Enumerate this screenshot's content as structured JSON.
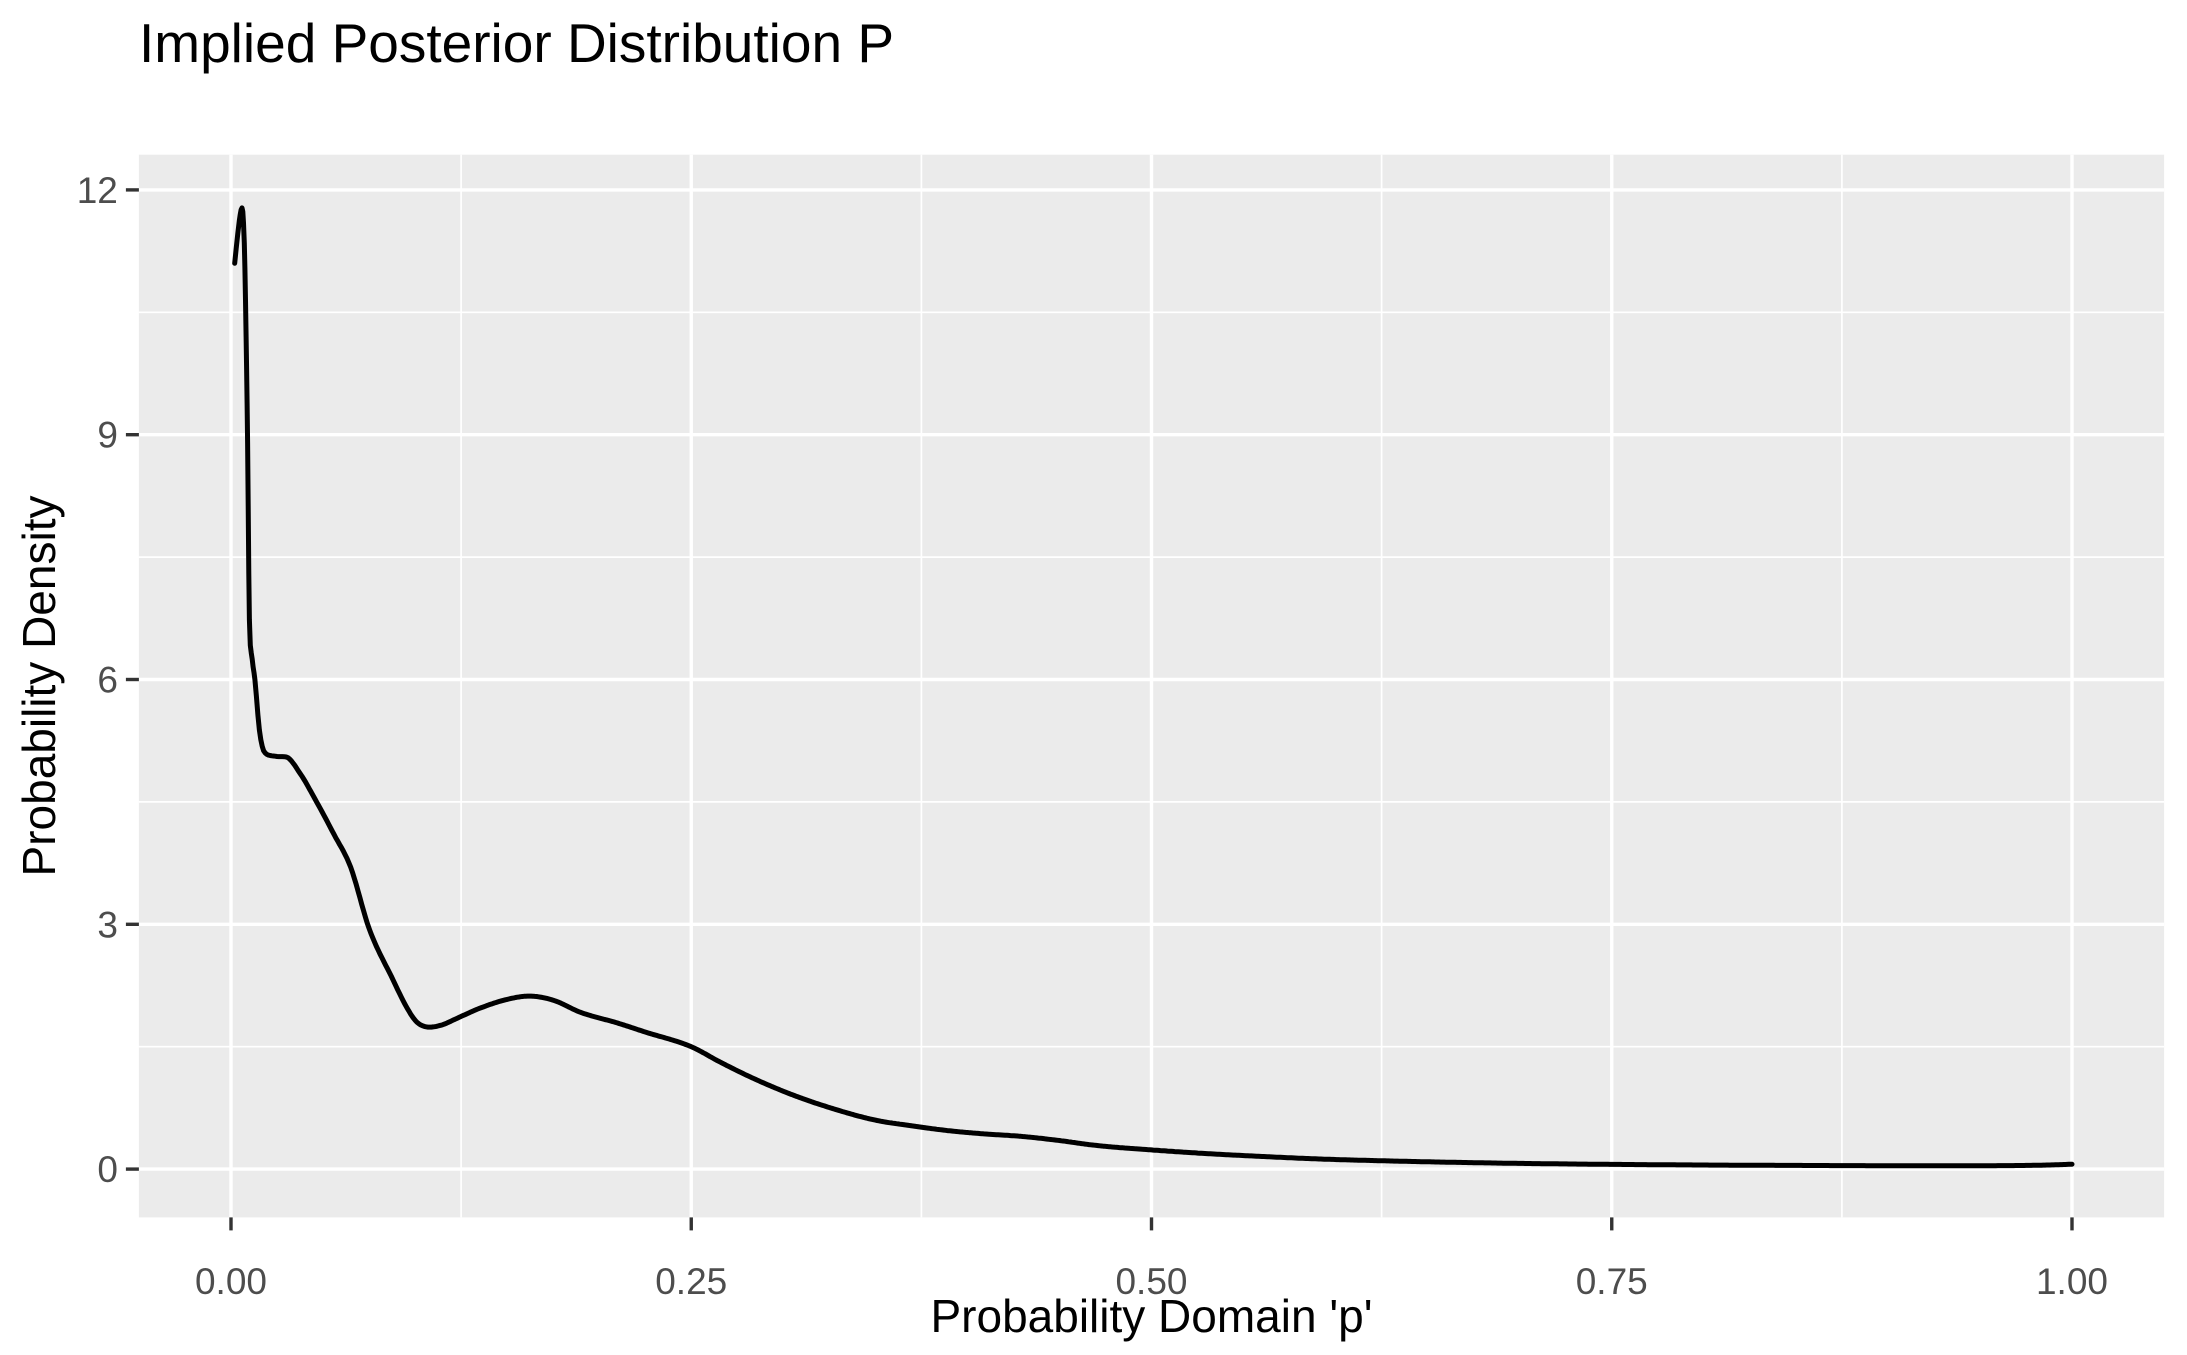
{
  "title": "Implied Posterior Distribution P",
  "x_axis": {
    "label": "Probability Domain 'p'",
    "tick_labels": [
      "0.00",
      "0.25",
      "0.50",
      "0.75",
      "1.00"
    ],
    "tick_values": [
      0,
      0.25,
      0.5,
      0.75,
      1.0
    ],
    "minor_tick_values": [
      0.125,
      0.375,
      0.625,
      0.875
    ],
    "range_expanded": [
      -0.05,
      1.05
    ]
  },
  "y_axis": {
    "label": "Probability Density",
    "tick_labels": [
      "0",
      "3",
      "6",
      "9",
      "12"
    ],
    "tick_values": [
      0,
      3,
      6,
      9,
      12
    ],
    "minor_tick_values": [
      1.5,
      4.5,
      7.5,
      10.5
    ],
    "range_expanded": [
      -0.59,
      12.43
    ]
  },
  "style": {
    "background": "#FFFFFF",
    "panel_background": "#EBEBEB",
    "gridline_color": "#FFFFFF",
    "curve_color": "#000000",
    "tick_mark_color": "#333333",
    "tick_label_color": "#4D4D4D",
    "title_color": "#000000"
  },
  "chart_data": {
    "type": "line",
    "title": "Implied Posterior Distribution P",
    "xlabel": "Probability Domain 'p'",
    "ylabel": "Probability Density",
    "xlim": [
      -0.05,
      1.05
    ],
    "ylim": [
      -0.59,
      12.43
    ],
    "grid": "gray panel, white major+minor gridlines (ggplot style)",
    "legend_position": "none",
    "series": [
      {
        "name": "posterior-density-curve",
        "color": "#000000",
        "points": [
          [
            0.002,
            11.1
          ],
          [
            0.0045,
            11.62
          ],
          [
            0.006,
            11.78
          ],
          [
            0.0072,
            11.35
          ],
          [
            0.0082,
            10.2
          ],
          [
            0.009,
            8.9
          ],
          [
            0.01,
            6.73
          ],
          [
            0.0115,
            6.25
          ],
          [
            0.013,
            6.0
          ],
          [
            0.0154,
            5.38
          ],
          [
            0.0185,
            5.1
          ],
          [
            0.024,
            5.06
          ],
          [
            0.03,
            5.05
          ],
          [
            0.0375,
            4.85
          ],
          [
            0.0465,
            4.5
          ],
          [
            0.056,
            4.1
          ],
          [
            0.065,
            3.7
          ],
          [
            0.075,
            2.95
          ],
          [
            0.088,
            2.32
          ],
          [
            0.095,
            2.0
          ],
          [
            0.101,
            1.8
          ],
          [
            0.108,
            1.74
          ],
          [
            0.115,
            1.77
          ],
          [
            0.122,
            1.84
          ],
          [
            0.135,
            1.97
          ],
          [
            0.15,
            2.08
          ],
          [
            0.162,
            2.12
          ],
          [
            0.175,
            2.07
          ],
          [
            0.19,
            1.92
          ],
          [
            0.21,
            1.79
          ],
          [
            0.225,
            1.68
          ],
          [
            0.25,
            1.5
          ],
          [
            0.265,
            1.32
          ],
          [
            0.282,
            1.13
          ],
          [
            0.305,
            0.91
          ],
          [
            0.33,
            0.72
          ],
          [
            0.35,
            0.6
          ],
          [
            0.37,
            0.53
          ],
          [
            0.39,
            0.47
          ],
          [
            0.41,
            0.43
          ],
          [
            0.43,
            0.4
          ],
          [
            0.45,
            0.35
          ],
          [
            0.47,
            0.29
          ],
          [
            0.5,
            0.235
          ],
          [
            0.53,
            0.19
          ],
          [
            0.56,
            0.155
          ],
          [
            0.59,
            0.125
          ],
          [
            0.62,
            0.105
          ],
          [
            0.66,
            0.085
          ],
          [
            0.7,
            0.07
          ],
          [
            0.75,
            0.058
          ],
          [
            0.8,
            0.05
          ],
          [
            0.85,
            0.045
          ],
          [
            0.9,
            0.042
          ],
          [
            0.95,
            0.042
          ],
          [
            0.975,
            0.045
          ],
          [
            0.99,
            0.052
          ],
          [
            1.0,
            0.06
          ]
        ]
      }
    ]
  }
}
